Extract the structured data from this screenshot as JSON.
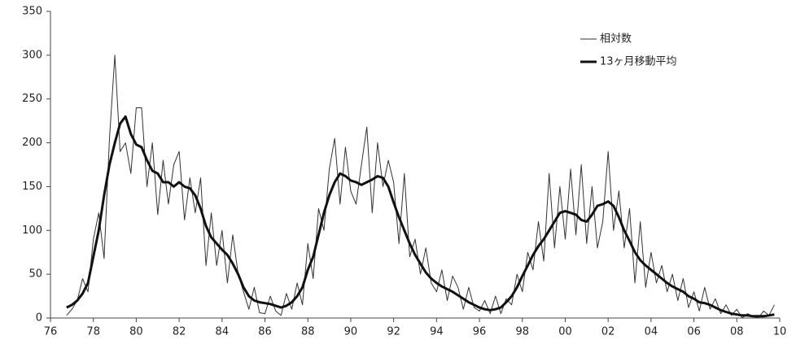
{
  "chart_data": {
    "type": "line",
    "x": [
      1976.75,
      1977,
      1977.25,
      1977.5,
      1977.75,
      1978,
      1978.25,
      1978.5,
      1978.75,
      1979,
      1979.25,
      1979.5,
      1979.75,
      1980,
      1980.25,
      1980.5,
      1980.75,
      1981,
      1981.25,
      1981.5,
      1981.75,
      1982,
      1982.25,
      1982.5,
      1982.75,
      1983,
      1983.25,
      1983.5,
      1983.75,
      1984,
      1984.25,
      1984.5,
      1984.75,
      1985,
      1985.25,
      1985.5,
      1985.75,
      1986,
      1986.25,
      1986.5,
      1986.75,
      1987,
      1987.25,
      1987.5,
      1987.75,
      1988,
      1988.25,
      1988.5,
      1988.75,
      1989,
      1989.25,
      1989.5,
      1989.75,
      1990,
      1990.25,
      1990.5,
      1990.75,
      1991,
      1991.25,
      1991.5,
      1991.75,
      1992,
      1992.25,
      1992.5,
      1992.75,
      1993,
      1993.25,
      1993.5,
      1993.75,
      1994,
      1994.25,
      1994.5,
      1994.75,
      1995,
      1995.25,
      1995.5,
      1995.75,
      1996,
      1996.25,
      1996.5,
      1996.75,
      1997,
      1997.25,
      1997.5,
      1997.75,
      1998,
      1998.25,
      1998.5,
      1998.75,
      1999,
      1999.25,
      1999.5,
      1999.75,
      2000,
      2000.25,
      2000.5,
      2000.75,
      2001,
      2001.25,
      2001.5,
      2001.75,
      2002,
      2002.25,
      2002.5,
      2002.75,
      2003,
      2003.25,
      2003.5,
      2003.75,
      2004,
      2004.25,
      2004.5,
      2004.75,
      2005,
      2005.25,
      2005.5,
      2005.75,
      2006,
      2006.25,
      2006.5,
      2006.75,
      2007,
      2007.25,
      2007.5,
      2007.75,
      2008,
      2008.25,
      2008.5,
      2008.75,
      2009,
      2009.25,
      2009.5,
      2009.75
    ],
    "series": [
      {
        "name": "相対数",
        "color": "#333333",
        "width": 1,
        "values": [
          3,
          10,
          20,
          45,
          30,
          90,
          120,
          68,
          205,
          300,
          190,
          200,
          165,
          240,
          240,
          150,
          200,
          118,
          180,
          130,
          175,
          190,
          112,
          160,
          120,
          160,
          60,
          120,
          60,
          100,
          40,
          95,
          50,
          30,
          10,
          35,
          6,
          5,
          25,
          8,
          3,
          28,
          10,
          40,
          15,
          85,
          45,
          125,
          100,
          170,
          205,
          130,
          195,
          145,
          130,
          175,
          218,
          120,
          200,
          150,
          180,
          155,
          85,
          165,
          70,
          90,
          50,
          80,
          40,
          30,
          55,
          20,
          48,
          35,
          10,
          35,
          12,
          8,
          20,
          5,
          25,
          5,
          22,
          15,
          50,
          30,
          75,
          55,
          110,
          65,
          165,
          80,
          150,
          90,
          170,
          95,
          175,
          85,
          150,
          80,
          110,
          190,
          100,
          145,
          80,
          125,
          40,
          110,
          35,
          75,
          40,
          60,
          30,
          50,
          20,
          45,
          12,
          30,
          8,
          35,
          10,
          22,
          5,
          15,
          3,
          10,
          0,
          5,
          2,
          0,
          8,
          3,
          15
        ]
      },
      {
        "name": "13ヶ月移動平均",
        "color": "#111111",
        "width": 3,
        "values": [
          12,
          15,
          20,
          28,
          40,
          70,
          100,
          140,
          175,
          200,
          222,
          230,
          210,
          198,
          195,
          180,
          168,
          165,
          155,
          155,
          150,
          155,
          150,
          148,
          140,
          125,
          105,
          92,
          85,
          78,
          72,
          62,
          50,
          35,
          25,
          20,
          18,
          17,
          16,
          14,
          12,
          14,
          18,
          25,
          35,
          55,
          70,
          95,
          120,
          140,
          155,
          165,
          162,
          157,
          155,
          152,
          155,
          158,
          162,
          160,
          150,
          132,
          115,
          100,
          85,
          72,
          62,
          52,
          45,
          40,
          36,
          33,
          30,
          26,
          22,
          18,
          15,
          12,
          10,
          9,
          10,
          12,
          18,
          25,
          35,
          48,
          60,
          72,
          82,
          90,
          100,
          110,
          120,
          122,
          120,
          118,
          112,
          110,
          118,
          128,
          130,
          133,
          128,
          115,
          100,
          88,
          75,
          66,
          60,
          55,
          50,
          45,
          40,
          36,
          33,
          30,
          25,
          22,
          18,
          17,
          15,
          12,
          9,
          7,
          5,
          4,
          3,
          3,
          2,
          2,
          2,
          3,
          4
        ]
      }
    ],
    "xlim": [
      1976,
      2010
    ],
    "xticks": [
      {
        "value": 1976,
        "label": "76"
      },
      {
        "value": 1978,
        "label": "78"
      },
      {
        "value": 1980,
        "label": "80"
      },
      {
        "value": 1982,
        "label": "82"
      },
      {
        "value": 1984,
        "label": "84"
      },
      {
        "value": 1986,
        "label": "86"
      },
      {
        "value": 1988,
        "label": "88"
      },
      {
        "value": 1990,
        "label": "90"
      },
      {
        "value": 1992,
        "label": "92"
      },
      {
        "value": 1994,
        "label": "94"
      },
      {
        "value": 1996,
        "label": "96"
      },
      {
        "value": 1998,
        "label": "98"
      },
      {
        "value": 2000,
        "label": "00"
      },
      {
        "value": 2002,
        "label": "02"
      },
      {
        "value": 2004,
        "label": "04"
      },
      {
        "value": 2006,
        "label": "06"
      },
      {
        "value": 2008,
        "label": "08"
      },
      {
        "value": 2010,
        "label": "10"
      }
    ],
    "ylim": [
      0,
      350
    ],
    "yticks": [
      0,
      50,
      100,
      150,
      200,
      250,
      300,
      350
    ],
    "legend": "top-right"
  }
}
